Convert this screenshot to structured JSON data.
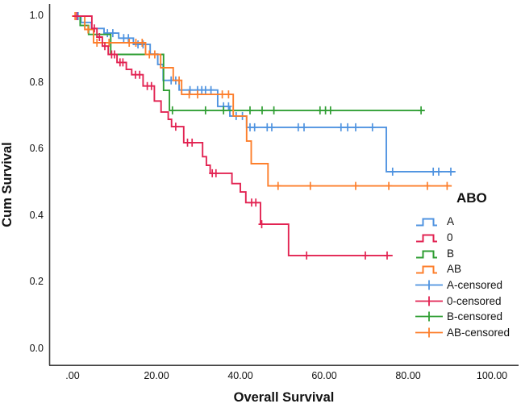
{
  "chart_data": {
    "type": "line",
    "subtype": "kaplan-meier-step-survival",
    "title": "",
    "xlabel": "Overall Survival",
    "ylabel": "Cum Survival",
    "xlim": [
      -5.5,
      106.5
    ],
    "ylim": [
      0,
      1.0
    ],
    "grid": false,
    "legend_position": "right-inside",
    "x_ticks": [
      {
        "label": ".00",
        "value": 0
      },
      {
        "label": "20.00",
        "value": 20
      },
      {
        "label": "40.00",
        "value": 40
      },
      {
        "label": "60.00",
        "value": 60
      },
      {
        "label": "80.00",
        "value": 80
      },
      {
        "label": "100.00",
        "value": 100
      }
    ],
    "y_ticks": [
      {
        "label": "0.0",
        "value": 0.0
      },
      {
        "label": "0.2",
        "value": 0.2
      },
      {
        "label": "0.4",
        "value": 0.4
      },
      {
        "label": "0.6",
        "value": 0.6
      },
      {
        "label": "0.8",
        "value": 0.8
      },
      {
        "label": "1.0",
        "value": 1.0
      }
    ],
    "legend": {
      "title": "ABO",
      "entries": [
        {
          "label": "A",
          "color": "#4f93e0",
          "kind": "line"
        },
        {
          "label": "0",
          "color": "#e22352",
          "kind": "line"
        },
        {
          "label": "B",
          "color": "#2f9e33",
          "kind": "line"
        },
        {
          "label": "AB",
          "color": "#fd7f2c",
          "kind": "line"
        },
        {
          "label": "A-censored",
          "color": "#4f93e0",
          "kind": "censor"
        },
        {
          "label": "0-censored",
          "color": "#e22352",
          "kind": "censor"
        },
        {
          "label": "B-censored",
          "color": "#2f9e33",
          "kind": "censor"
        },
        {
          "label": "AB-censored",
          "color": "#fd7f2c",
          "kind": "censor"
        }
      ]
    },
    "series": [
      {
        "name": "A",
        "color": "#4f93e0",
        "end": 91.3,
        "steps": [
          [
            0,
            1.0
          ],
          [
            2,
            0.981
          ],
          [
            4.5,
            0.963
          ],
          [
            7.5,
            0.949
          ],
          [
            11,
            0.934
          ],
          [
            14.5,
            0.915
          ],
          [
            18.5,
            0.886
          ],
          [
            20.3,
            0.855
          ],
          [
            21.6,
            0.807
          ],
          [
            25.4,
            0.778
          ],
          [
            34.6,
            0.729
          ],
          [
            37.5,
            0.7
          ],
          [
            41.5,
            0.666
          ],
          [
            74.8,
            0.533
          ]
        ],
        "censors": [
          1.3,
          8.3,
          9.6,
          12.2,
          13.3,
          15.6,
          16.8,
          23.5,
          24.6,
          28,
          29.8,
          30.8,
          31.7,
          33,
          36,
          37.2,
          39,
          40.5,
          42.3,
          43.4,
          46.4,
          47.5,
          53.8,
          55.2,
          64,
          65.6,
          67.5,
          71.5,
          76.3,
          86,
          87.3,
          90.2
        ]
      },
      {
        "name": "B",
        "color": "#2f9e33",
        "end": 84,
        "steps": [
          [
            0,
            1.0
          ],
          [
            1.8,
            0.972
          ],
          [
            3.8,
            0.945
          ],
          [
            9.1,
            0.885
          ],
          [
            21.7,
            0.777
          ],
          [
            23.1,
            0.717
          ]
        ],
        "censors": [
          23.8,
          31.7,
          36,
          42.3,
          45.2,
          48,
          59,
          60.3,
          61.5,
          83.1
        ]
      },
      {
        "name": "AB",
        "color": "#fd7f2c",
        "end": 90.4,
        "steps": [
          [
            0,
            1.0
          ],
          [
            2.9,
            0.96
          ],
          [
            5,
            0.92
          ],
          [
            17.4,
            0.885
          ],
          [
            21,
            0.845
          ],
          [
            24,
            0.807
          ],
          [
            26,
            0.765
          ],
          [
            38.3,
            0.7
          ],
          [
            41.5,
            0.625
          ],
          [
            42.6,
            0.557
          ],
          [
            46.6,
            0.49
          ]
        ],
        "censors": [
          0.6,
          3.7,
          5.8,
          8.7,
          13.5,
          15.1,
          16.6,
          18.3,
          19.6,
          25.4,
          27.8,
          29.8,
          35.7,
          37.2,
          49,
          56.7,
          67.5,
          75.4,
          84.6,
          89.3
        ]
      },
      {
        "name": "0",
        "color": "#e22352",
        "end": 76.3,
        "steps": [
          [
            0,
            1.0
          ],
          [
            4.6,
            0.963
          ],
          [
            5.8,
            0.937
          ],
          [
            7.1,
            0.91
          ],
          [
            8.5,
            0.885
          ],
          [
            10.6,
            0.861
          ],
          [
            12.8,
            0.84
          ],
          [
            14.1,
            0.824
          ],
          [
            16.8,
            0.79
          ],
          [
            19.5,
            0.745
          ],
          [
            21.1,
            0.712
          ],
          [
            22.8,
            0.69
          ],
          [
            23.6,
            0.668
          ],
          [
            26.5,
            0.62
          ],
          [
            31,
            0.578
          ],
          [
            31.9,
            0.552
          ],
          [
            32.8,
            0.528
          ],
          [
            38,
            0.497
          ],
          [
            40,
            0.472
          ],
          [
            41.3,
            0.44
          ],
          [
            44.8,
            0.375
          ],
          [
            51.5,
            0.281
          ]
        ],
        "censors": [
          1.0,
          5.2,
          6.4,
          7.7,
          9.3,
          10,
          11.3,
          12,
          15,
          16,
          17.8,
          18.8,
          24.6,
          27.4,
          28.5,
          33.3,
          34.2,
          42.7,
          43.7,
          45.1,
          55.8,
          69.8,
          75
        ]
      }
    ]
  }
}
